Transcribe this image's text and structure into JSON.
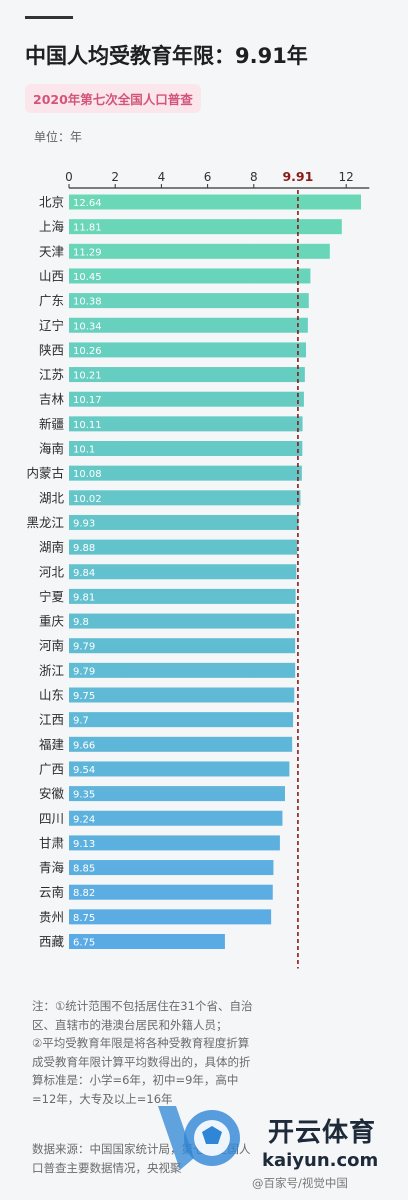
{
  "header": {
    "title": "中国人均受教育年限：9.91年",
    "subtitle": "2020年第七次全国人口普查",
    "unit": "单位：年"
  },
  "chart_data": {
    "type": "bar",
    "orientation": "horizontal",
    "categories": [
      "北京",
      "上海",
      "天津",
      "山西",
      "广东",
      "辽宁",
      "陕西",
      "江苏",
      "吉林",
      "新疆",
      "海南",
      "内蒙古",
      "湖北",
      "黑龙江",
      "湖南",
      "河北",
      "宁夏",
      "重庆",
      "河南",
      "浙江",
      "山东",
      "江西",
      "福建",
      "广西",
      "安徽",
      "四川",
      "甘肃",
      "青海",
      "云南",
      "贵州",
      "西藏"
    ],
    "values": [
      12.64,
      11.81,
      11.29,
      10.45,
      10.38,
      10.34,
      10.26,
      10.21,
      10.17,
      10.11,
      10.1,
      10.08,
      10.02,
      9.93,
      9.88,
      9.84,
      9.81,
      9.8,
      9.79,
      9.79,
      9.75,
      9.7,
      9.66,
      9.54,
      9.35,
      9.24,
      9.13,
      8.85,
      8.82,
      8.75,
      6.75
    ],
    "value_labels": [
      "12.64",
      "11.81",
      "11.29",
      "10.45",
      "10.38",
      "10.34",
      "10.26",
      "10.21",
      "10.17",
      "10.11",
      "10.1",
      "10.08",
      "10.02",
      "9.93",
      "9.88",
      "9.84",
      "9.81",
      "9.8",
      "9.79",
      "9.79",
      "9.75",
      "9.7",
      "9.66",
      "9.54",
      "9.35",
      "9.24",
      "9.13",
      "8.85",
      "8.82",
      "8.75",
      "6.75"
    ],
    "x_ticks": [
      0,
      2,
      4,
      6,
      8,
      12
    ],
    "x_tick_labels": [
      "0",
      "2",
      "4",
      "6",
      "8",
      "12"
    ],
    "xlim": [
      0,
      13
    ],
    "reference_line": {
      "value": 9.91,
      "label": "9.91",
      "color": "#8b1a1a",
      "style": "dashed"
    },
    "colors": {
      "top": "#6ad9b5",
      "bottom": "#5aa9e6"
    },
    "grid": false
  },
  "notes": {
    "note1": "注：①统计范围不包括居住在31个省、自治区、直辖市的港澳台居民和外籍人员；",
    "note2": "②平均受教育年限是将各种受教育程度折算成受教育年限计算平均数得出的，具体的折算标准是：小学=6年，初中=9年，高中=12年，大专及以上=16年"
  },
  "source": "数据来源：中国国家统计局，第七次全国人口普查主要数据情况，央视聚",
  "watermark": {
    "brand": "开云体育",
    "url": "kaiyun.com",
    "credit": "@百家号/视觉中国"
  }
}
